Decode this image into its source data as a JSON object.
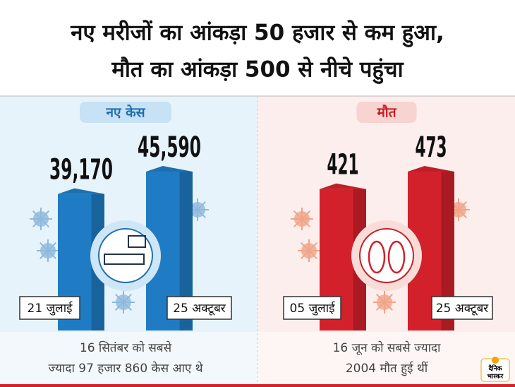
{
  "title": [
    "नए मरीजों का आंकड़ा 50 हजार से कम हुआ,",
    "मौत का आंकड़ा 500 से नीचे पहुंचा"
  ],
  "chart_data": [
    {
      "type": "bar",
      "title": "नए केस",
      "categories": [
        "21 जुलाई",
        "25 अक्टूबर"
      ],
      "values": [
        39170,
        45590
      ],
      "value_labels": [
        "39,170",
        "45,590"
      ],
      "color": "#1f7cc4",
      "note": [
        "16 सितंबर को सबसे",
        "ज्यादा 97 हजार 860 केस आए थे"
      ]
    },
    {
      "type": "bar",
      "title": "मौत",
      "categories": [
        "05 जुलाई",
        "25 अक्टूबर"
      ],
      "values": [
        421,
        473
      ],
      "color": "#d3212b",
      "note": [
        "16 जून को सबसे ज्यादा",
        "2004 मौत हुई थीं"
      ]
    }
  ],
  "logo": [
    "दैनिक",
    "भास्कर"
  ]
}
